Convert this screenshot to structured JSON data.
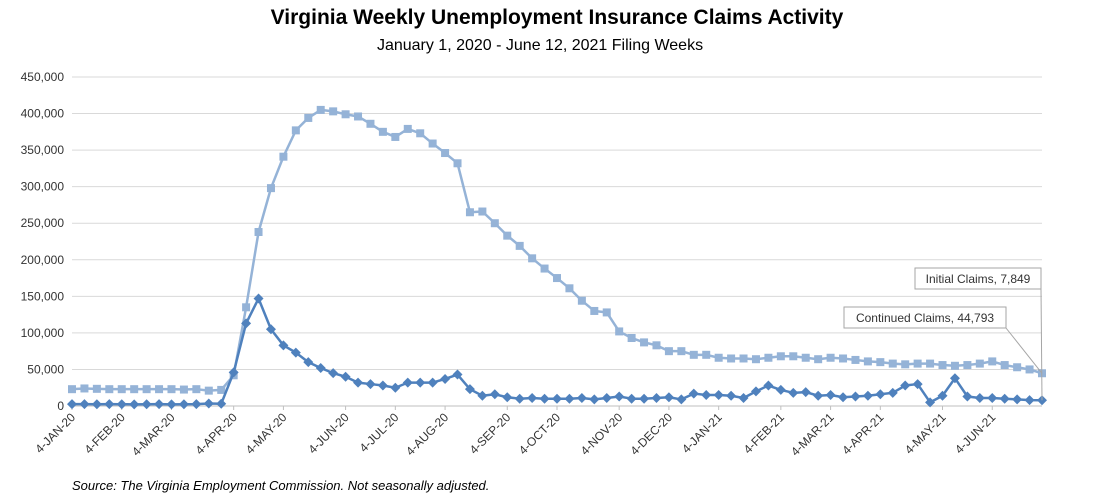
{
  "chart_data": {
    "type": "line",
    "title": "Virginia Weekly Unemployment Insurance Claims Activity",
    "subtitle": "January 1, 2020 - June 12, 2021 Filing Weeks",
    "source": "Source: The Virginia Employment Commission. Not seasonally adjusted.",
    "ylim": [
      0,
      450000
    ],
    "y_ticks": [
      "0",
      "50,000",
      "100,000",
      "150,000",
      "200,000",
      "250,000",
      "300,000",
      "350,000",
      "400,000",
      "450,000"
    ],
    "x_tick_labels": [
      "4-JAN-20",
      "4-FEB-20",
      "4-MAR-20",
      "4-APR-20",
      "4-MAY-20",
      "4-JUN-20",
      "4-JUL-20",
      "4-AUG-20",
      "4-SEP-20",
      "4-OCT-20",
      "4-NOV-20",
      "4-DEC-20",
      "4-JAN-21",
      "4-FEB-21",
      "4-MAR-21",
      "4-APR-21",
      "4-MAY-21",
      "4-JUN-21"
    ],
    "x_tick_week_index": [
      0,
      4,
      8,
      13,
      17,
      22,
      26,
      30,
      35,
      39,
      44,
      48,
      52,
      57,
      61,
      65,
      70,
      74
    ],
    "grid": "horizontal",
    "series": [
      {
        "color": "#4f81bd",
        "marker": "diamond",
        "values": [
          2500,
          2600,
          2400,
          2500,
          2400,
          2300,
          2400,
          2500,
          2300,
          2400,
          2600,
          3500,
          3000,
          46000,
          113000,
          147000,
          105000,
          83000,
          73000,
          60000,
          52000,
          45000,
          40000,
          32000,
          30000,
          28000,
          25000,
          32000,
          32000,
          32000,
          37000,
          43000,
          23000,
          14000,
          16000,
          12000,
          10000,
          11000,
          10000,
          10000,
          10000,
          11000,
          9000,
          11000,
          13000,
          10000,
          10000,
          11000,
          12000,
          9000,
          17000,
          15000,
          15000,
          14000,
          11000,
          20000,
          28000,
          22000,
          18000,
          19000,
          14000,
          15000,
          12000,
          13000,
          14000,
          16000,
          18000,
          28000,
          30000,
          5000,
          14000,
          38000,
          13000,
          11000,
          11000,
          10000,
          9000,
          8000,
          7849
        ]
      },
      {
        "color": "#95b3d7",
        "marker": "square",
        "values": [
          23000,
          24000,
          23500,
          23000,
          23000,
          23000,
          23000,
          23000,
          23000,
          22500,
          23000,
          21000,
          22000,
          42000,
          135000,
          238000,
          298000,
          341000,
          377000,
          394000,
          405000,
          403000,
          399000,
          396000,
          386000,
          375000,
          368000,
          379000,
          373000,
          359000,
          346000,
          332000,
          265000,
          266000,
          250000,
          233000,
          219000,
          202000,
          188000,
          175000,
          161000,
          144000,
          130000,
          128000,
          102000,
          93000,
          87000,
          83000,
          75000,
          75000,
          70000,
          70000,
          66000,
          65000,
          65000,
          64000,
          66000,
          68000,
          68000,
          66000,
          64000,
          66000,
          65000,
          63000,
          61000,
          60000,
          58000,
          57000,
          58000,
          58000,
          56000,
          55000,
          56000,
          58000,
          61000,
          56000,
          53000,
          50000,
          44793
        ]
      }
    ],
    "callouts": [
      {
        "text": "Initial Clai​ms, 7,849"
      },
      {
        "text": "Continued Claims, 44,793"
      }
    ]
  }
}
